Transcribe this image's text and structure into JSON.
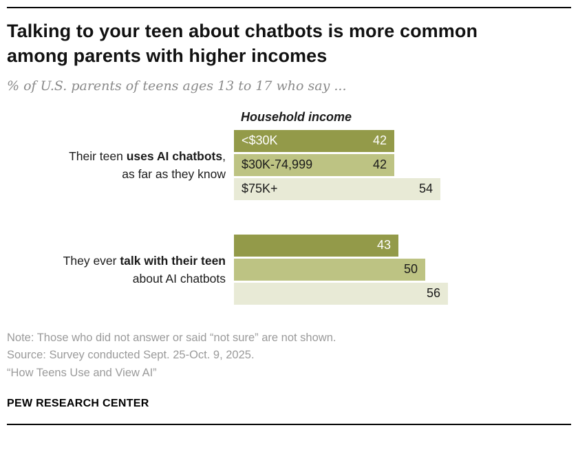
{
  "header": {
    "title_line1": "Talking to your teen about chatbots is more common",
    "title_line2": "among parents with higher incomes",
    "subtitle": "% of U.S. parents of teens ages 13 to 17 who say ..."
  },
  "chart_data": {
    "type": "bar",
    "orientation": "horizontal",
    "column_header": "Household income",
    "categories": [
      "<$30K",
      "$30K-74,999",
      "$75K+"
    ],
    "series_colors": [
      "#939a49",
      "#bdc383",
      "#e8ead6"
    ],
    "xlim": [
      0,
      60
    ],
    "groups": [
      {
        "label_prefix": "Their teen ",
        "label_bold": "uses AI chatbots",
        "label_suffix": ",",
        "label_line2": "as far as they know",
        "show_category_labels": true,
        "values": [
          42,
          42,
          54
        ]
      },
      {
        "label_prefix": "They ever ",
        "label_bold": "talk with their teen",
        "label_suffix": "",
        "label_line2": "about AI chatbots",
        "show_category_labels": false,
        "values": [
          43,
          50,
          56
        ]
      }
    ]
  },
  "footer": {
    "note": "Note: Those who did not answer or said “not sure” are not shown.",
    "source": "Source: Survey conducted Sept. 25-Oct. 9, 2025.",
    "quote": "“How Teens Use and View AI”",
    "brand": "PEW RESEARCH CENTER"
  }
}
